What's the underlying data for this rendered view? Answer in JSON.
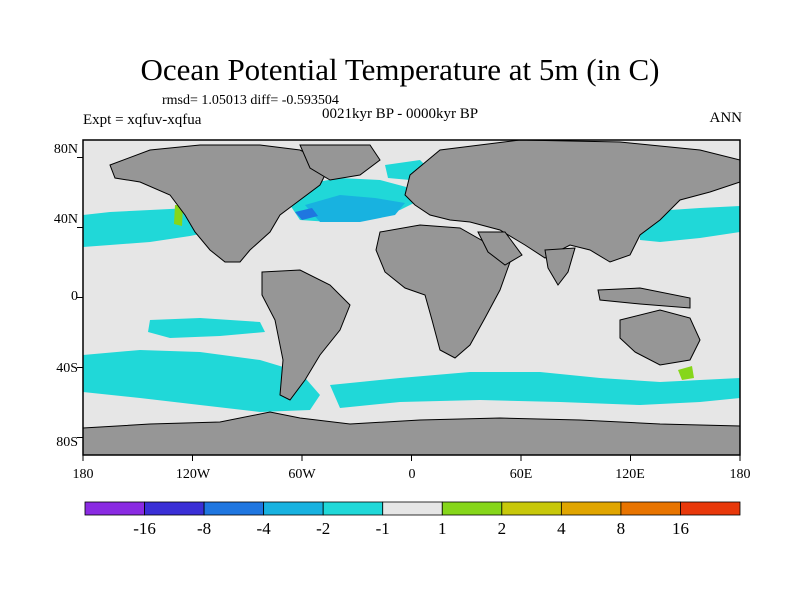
{
  "title": "Ocean Potential Temperature at 5m (in C)",
  "stats_line": "rmsd= 1.05013 diff= -0.593504",
  "period_label": "0021kyr BP - 0000kyr BP",
  "experiment_label": "Expt = xqfuv-xqfua",
  "season_label": "ANN",
  "lat_ticks": [
    "80N",
    "40N",
    "0",
    "40S",
    "80S"
  ],
  "lon_ticks": [
    "180",
    "120W",
    "60W",
    "0",
    "60E",
    "120E",
    "180"
  ],
  "colors": {
    "land": "#969696",
    "neutral": "#e6e6e6",
    "coast": "#000000"
  },
  "colorbar": {
    "bins": [
      {
        "color": "#8a2be2"
      },
      {
        "color": "#3a2fd6"
      },
      {
        "color": "#1f76e0"
      },
      {
        "color": "#18b2e0"
      },
      {
        "color": "#20d8d8"
      },
      {
        "color": "#e6e6e6"
      },
      {
        "color": "#86d61a"
      },
      {
        "color": "#c8c80a"
      },
      {
        "color": "#e0a500"
      },
      {
        "color": "#e87400"
      },
      {
        "color": "#e8380a"
      }
    ],
    "labels": [
      "-16",
      "-8",
      "-4",
      "-2",
      "-1",
      "1",
      "2",
      "4",
      "8",
      "16"
    ]
  }
}
